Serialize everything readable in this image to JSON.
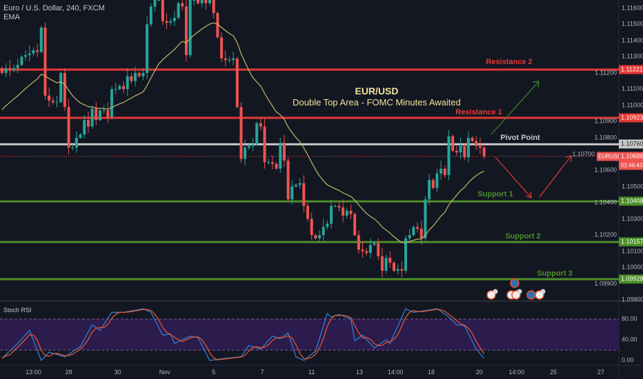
{
  "header": {
    "symbol_line": "Euro / U.S. Dollar, 240, FXCM",
    "indicator": "EMA"
  },
  "annotation": {
    "title": "EUR/USD",
    "subtitle": "Double Top Area - FOMC Minutes Awaited"
  },
  "levels": [
    {
      "label": "Resistance 2",
      "price": 1.11221,
      "tag": "1.11221",
      "color": "#e53935"
    },
    {
      "label": "Resistance 1",
      "price": 1.10923,
      "tag": "1.10923",
      "color": "#e53935"
    },
    {
      "label": "Pivot Point",
      "price": 1.1076,
      "tag": "1.10760",
      "color": "#c8c8c8"
    },
    {
      "label": "Support 1",
      "price": 1.10408,
      "tag": "1.10408",
      "color": "#4c8f28"
    },
    {
      "label": "Support 2",
      "price": 1.10157,
      "tag": "1.10157",
      "color": "#4c8f28"
    },
    {
      "label": "Support 3",
      "price": 1.09928,
      "tag": "1.09928",
      "color": "#4c8f28"
    }
  ],
  "current": {
    "symbol": "EURUSD",
    "price": "1.10686",
    "countdown": "02:46:43",
    "value": 1.10686
  },
  "colors": {
    "up": "#26a69a",
    "down": "#ef5350",
    "ema": "#c9b86a",
    "k": "#2f7fd0",
    "d": "#e8552d",
    "background": "#131722"
  },
  "chart_data": {
    "type": "candlestick",
    "title": "Euro / U.S. Dollar, 240, FXCM",
    "price_axis_ticks": [
      "1.11600",
      "1.11500",
      "1.11400",
      "1.11300",
      "1.11200",
      "1.11100",
      "1.11000",
      "1.10900",
      "1.10800",
      "1.10700",
      "1.10600",
      "1.10500",
      "1.10400",
      "1.10300",
      "1.10200",
      "1.10100",
      "1.10000",
      "1.09900",
      "1.09800"
    ],
    "ylim": [
      1.098,
      1.1165
    ],
    "closes": [
      1.112,
      1.1123,
      1.1122,
      1.1123,
      1.1125,
      1.113,
      1.1131,
      1.1132,
      1.1134,
      1.1133,
      1.1148,
      1.1106,
      1.1103,
      1.1102,
      1.1102,
      1.112,
      1.1099,
      1.1074,
      1.1074,
      1.108,
      1.1082,
      1.1091,
      1.1087,
      1.1098,
      1.1091,
      1.1097,
      1.1097,
      1.1093,
      1.111,
      1.111,
      1.1112,
      1.111,
      1.1118,
      1.1115,
      1.112,
      1.1118,
      1.112,
      1.115,
      1.1161,
      1.1165,
      1.1165,
      1.1152,
      1.1151,
      1.1152,
      1.1154,
      1.1163,
      1.1161,
      1.1131,
      1.1165,
      1.1165,
      1.1163,
      1.1165,
      1.1163,
      1.1165,
      1.1157,
      1.1142,
      1.1129,
      1.1128,
      1.1128,
      1.1129,
      1.1099,
      1.1067,
      1.1074,
      1.1075,
      1.1076,
      1.1089,
      1.1087,
      1.1065,
      1.1065,
      1.1064,
      1.1061,
      1.1077,
      1.1066,
      1.1042,
      1.105,
      1.1051,
      1.1052,
      1.1038,
      1.103,
      1.102,
      1.1018,
      1.102,
      1.1025,
      1.1027,
      1.1038,
      1.1038,
      1.1037,
      1.1032,
      1.1035,
      1.1033,
      1.102,
      1.1011,
      1.101,
      1.1009,
      1.1014,
      1.1015,
      1.1007,
      1.0998,
      1.1006,
      1.1003,
      1.0998,
      1.0999,
      1.0998,
      1.1018,
      1.102,
      1.1025,
      1.1024,
      1.1018,
      1.1042,
      1.1054,
      1.1049,
      1.1058,
      1.1061,
      1.1057,
      1.1081,
      1.1072,
      1.1071,
      1.1075,
      1.1068,
      1.108,
      1.1078,
      1.1075,
      1.1074,
      1.10686
    ],
    "ema_seed": 1.1095,
    "ema_period": 20,
    "stoch_rsi": {
      "label": "Stoch RSI",
      "ticks": [
        "80.00",
        "40.00",
        "0.00"
      ],
      "band": [
        20,
        80
      ],
      "k": [
        [
          0,
          4
        ],
        [
          4,
          33
        ],
        [
          7,
          58
        ],
        [
          10,
          0
        ],
        [
          12,
          16
        ],
        [
          16,
          7
        ],
        [
          20,
          27
        ],
        [
          23,
          69
        ],
        [
          25,
          58
        ],
        [
          28,
          93
        ],
        [
          31,
          93
        ],
        [
          36,
          100
        ],
        [
          38,
          93
        ],
        [
          41,
          49
        ],
        [
          43,
          51
        ],
        [
          44,
          33
        ],
        [
          48,
          47
        ],
        [
          50,
          44
        ],
        [
          53,
          0
        ],
        [
          57,
          4
        ],
        [
          61,
          7
        ],
        [
          63,
          29
        ],
        [
          66,
          22
        ],
        [
          69,
          47
        ],
        [
          71,
          42
        ],
        [
          73,
          53
        ],
        [
          75,
          7
        ],
        [
          77,
          0
        ],
        [
          80,
          18
        ],
        [
          83,
          91
        ],
        [
          84,
          84
        ],
        [
          86,
          89
        ],
        [
          89,
          80
        ],
        [
          90,
          38
        ],
        [
          92,
          49
        ],
        [
          95,
          24
        ],
        [
          98,
          40
        ],
        [
          99,
          33
        ],
        [
          103,
          100
        ],
        [
          105,
          93
        ],
        [
          111,
          100
        ],
        [
          114,
          84
        ],
        [
          116,
          69
        ],
        [
          118,
          67
        ],
        [
          121,
          22
        ],
        [
          123,
          4
        ]
      ]
    },
    "time_axis": [
      {
        "label": "13:00",
        "index": 8
      },
      {
        "label": "28",
        "index": 17
      },
      {
        "label": "30",
        "index": 29.5
      },
      {
        "label": "Nov",
        "index": 41.5
      },
      {
        "label": "5",
        "index": 54
      },
      {
        "label": "7",
        "index": 66.4
      },
      {
        "label": "11",
        "index": 79
      },
      {
        "label": "13",
        "index": 91.2
      },
      {
        "label": "14:00",
        "index": 100.4
      },
      {
        "label": "18",
        "index": 109.5
      },
      {
        "label": "20",
        "index": 121.8
      },
      {
        "label": "14:00",
        "index": 131.3
      },
      {
        "label": "25",
        "index": 140.7
      },
      {
        "label": "27",
        "index": 152.8
      }
    ]
  }
}
